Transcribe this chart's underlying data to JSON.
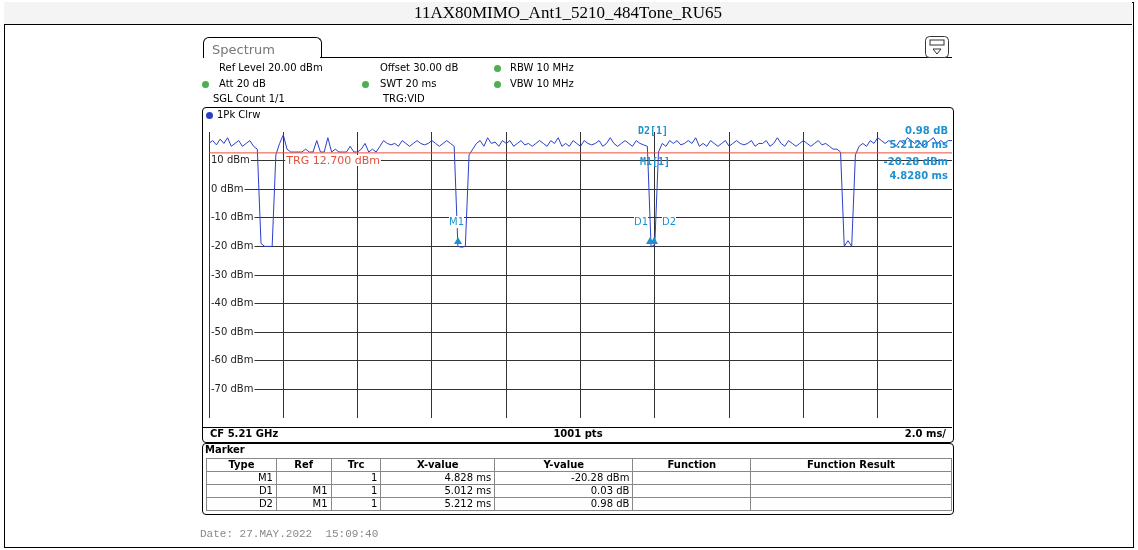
{
  "chart_data": {
    "type": "line",
    "title": "11AX80MIMO_Ant1_5210_484Tone_RU65",
    "categories": [
      null,
      null,
      null,
      null,
      null,
      null,
      null,
      null,
      null,
      null,
      null,
      null,
      null,
      null,
      null,
      null,
      null,
      null,
      null,
      null,
      null,
      null,
      null,
      null,
      null,
      null,
      null,
      null,
      null,
      null,
      null,
      null,
      null,
      null,
      null,
      null,
      null,
      null,
      null,
      null,
      null,
      null,
      null,
      null,
      null,
      null,
      null,
      null,
      null,
      null,
      null,
      null,
      null,
      null,
      null,
      null,
      null,
      null,
      null,
      null,
      null,
      null,
      null,
      null,
      null,
      null,
      null,
      null,
      null,
      null,
      null,
      null,
      null,
      null,
      null,
      null,
      null,
      null,
      null,
      null,
      null,
      null,
      null,
      null,
      null,
      null,
      null,
      null,
      null,
      null,
      null,
      null,
      null,
      null,
      null,
      null,
      null,
      null,
      null,
      null,
      null,
      null,
      null,
      null,
      null,
      null,
      null,
      null,
      null,
      null,
      null,
      null,
      null,
      null,
      null,
      null,
      null,
      null,
      null,
      null,
      null,
      null,
      null,
      null,
      null,
      null,
      null,
      null,
      null,
      null,
      null,
      null,
      null,
      null,
      null,
      null,
      null,
      null,
      null,
      null,
      null,
      null,
      null,
      null,
      null,
      null,
      null,
      null,
      null,
      null,
      null,
      null,
      null,
      null,
      null,
      null,
      null,
      null,
      null,
      null,
      null,
      null,
      null,
      null,
      null,
      null,
      null,
      null,
      null,
      null,
      null,
      null,
      null,
      null,
      null,
      null,
      null,
      null,
      null,
      null,
      null,
      null,
      null,
      null,
      null,
      null,
      null,
      null,
      null,
      null,
      null,
      null,
      null,
      null,
      null,
      null,
      null,
      null,
      null,
      null,
      null
    ],
    "series": [
      {
        "color": "#2b3fc9",
        "values": [
          16,
          17,
          15.5,
          17.5,
          16,
          18,
          15,
          16,
          17,
          15,
          16,
          17,
          15,
          14,
          -19,
          -20,
          -20,
          -20,
          12,
          16,
          19,
          14,
          13,
          13,
          13,
          13,
          14,
          13,
          13,
          17,
          13,
          13,
          18,
          13,
          14,
          13,
          13,
          13,
          15,
          13,
          13,
          14,
          16,
          13,
          14,
          13,
          15,
          17,
          16,
          15.5,
          16,
          15,
          17,
          16,
          15,
          16,
          17,
          16,
          15.5,
          16,
          17,
          16,
          15,
          16,
          17,
          16,
          15,
          -20,
          -20.3,
          -20,
          12,
          14,
          16,
          17,
          15,
          18,
          16,
          16.5,
          15,
          17,
          16,
          17,
          15,
          16,
          17,
          15.5,
          16,
          15,
          16,
          17,
          16,
          15,
          17,
          16,
          18,
          15,
          16,
          15,
          17,
          16,
          15,
          17,
          16,
          15.5,
          16,
          17,
          15,
          16,
          18,
          16,
          15,
          16,
          17,
          16,
          15,
          17,
          16,
          15.5,
          15,
          -20.2,
          -19.3,
          13,
          16,
          15,
          17,
          16,
          17,
          15.5,
          16,
          17,
          16,
          18,
          15,
          16,
          15,
          17,
          16,
          15,
          16,
          17,
          15,
          16,
          17,
          16,
          15.5,
          16,
          17,
          15,
          16,
          16,
          17,
          15,
          16,
          18,
          16,
          15,
          17,
          16,
          15,
          16,
          17,
          16,
          15,
          16,
          17,
          15.5,
          16,
          15,
          14,
          14,
          13,
          -20,
          -18,
          -20,
          12,
          15,
          16,
          15,
          17,
          16,
          18,
          17,
          16,
          17,
          16,
          15,
          17,
          16,
          18,
          17,
          16,
          17,
          15,
          16,
          17,
          18,
          16,
          17,
          16,
          17,
          17
        ]
      }
    ],
    "ylim": [
      -80,
      20
    ],
    "yticks": [
      {
        "value": -70,
        "label": "-70 dBm"
      },
      {
        "value": -60,
        "label": "-60 dBm"
      },
      {
        "value": -50,
        "label": "-50 dBm"
      },
      {
        "value": -40,
        "label": "-40 dBm"
      },
      {
        "value": -30,
        "label": "-30 dBm"
      },
      {
        "value": -20,
        "label": "-20 dBm"
      },
      {
        "value": -10,
        "label": "-10 dBm"
      },
      {
        "value": 0,
        "label": "0 dBm"
      },
      {
        "value": 10,
        "label": "10 dBm"
      }
    ],
    "tick_labels": "y",
    "grid": true,
    "legend": false,
    "ref_lines": [
      {
        "axis": "y",
        "value": 12.7,
        "label": "TRG 12.700 dBm",
        "color": "#e8503c"
      }
    ],
    "annotations": [
      "Spectrum",
      "Ref Level 20.00 dBm",
      "Offset 30.00 dB",
      "RBW 10 MHz",
      "Att 20 dB",
      "SWT 20 ms",
      "VBW 10 MHz",
      "SGL Count 1/1",
      "TRG:VID",
      "1Pk Clrw",
      "D2[1]",
      "0.98 dB",
      "5.2120 ms",
      "M1[1]",
      "-20.28 dBm",
      "4.8280 ms",
      "CF 5.21 GHz",
      "1001 pts",
      "2.0 ms/",
      "Marker",
      "Type",
      "Ref",
      "Trc",
      "X-value",
      "Y-value",
      "Function",
      "Function Result",
      "M1",
      "1",
      "4.828 ms",
      "-20.28 dBm",
      "D1",
      "M1",
      "1",
      "5.012 ms",
      "0.03 dB",
      "D2",
      "M1",
      "1",
      "5.212 ms",
      "0.98 dB",
      "Date: 27.MAY.2022  15:09:40",
      "M1",
      "D1",
      "D2"
    ]
  }
}
